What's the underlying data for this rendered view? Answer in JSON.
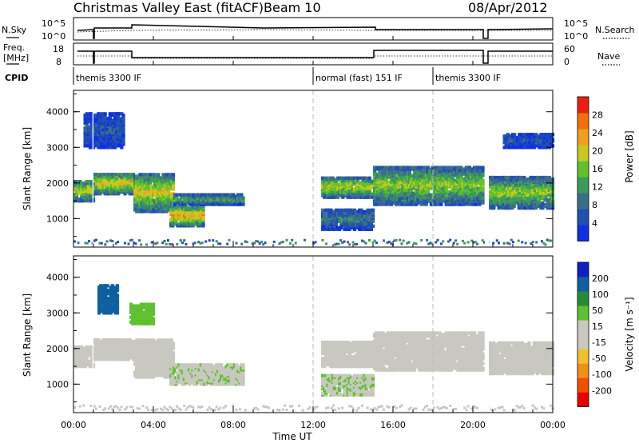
{
  "header": {
    "title": "Christmas Valley East (fitACF)",
    "beam": "Beam 10",
    "date": "08/Apr/2012"
  },
  "top_panels": {
    "nsky_label": "N.Sky",
    "nsky_ticks": [
      "10^5",
      "10^0"
    ],
    "nsearch_label": "N.Search",
    "nsearch_ticks": [
      "10^5",
      "10^0"
    ],
    "freq_label_line1": "Freq.",
    "freq_label_line2": "[MHz]",
    "freq_ticks": [
      "18",
      "8"
    ],
    "nave_label": "Nave",
    "nave_ticks": [
      "60",
      "0"
    ],
    "cpid_label": "CPID",
    "cpid_segments": [
      {
        "label": "themis 3300 IF",
        "start_hour": 0.0
      },
      {
        "label": "normal (fast) 151 IF",
        "start_hour": 12.0
      },
      {
        "label": "themis 3300 IF",
        "start_hour": 18.0
      }
    ],
    "gap_hours": [
      [
        0.95,
        1.0
      ],
      [
        20.6,
        20.8
      ]
    ]
  },
  "chart_data": [
    {
      "type": "heatmap",
      "name": "power",
      "ylabel": "Slant Range [km]",
      "yticks": [
        1000,
        2000,
        3000,
        4000
      ],
      "ylim": [
        200,
        4600
      ],
      "xlim": [
        0,
        24
      ],
      "colorbar_label": "Power [dB]",
      "colorbar_ticks": [
        4,
        8,
        12,
        16,
        20,
        24,
        28
      ],
      "colorbar_range": [
        0,
        32
      ],
      "colorbar_colors": [
        "#1030e0",
        "#2050b0",
        "#3c6e8c",
        "#3c9a5a",
        "#62c030",
        "#c8c820",
        "#f0a020",
        "#f07010",
        "#e82010"
      ],
      "echo_bands": [
        {
          "t0": 0.0,
          "t1": 1.0,
          "r0": 1500,
          "r1": 2100,
          "level": 20
        },
        {
          "t0": 1.0,
          "t1": 3.0,
          "r0": 1700,
          "r1": 2300,
          "level": 22
        },
        {
          "t0": 3.0,
          "t1": 5.0,
          "r0": 1200,
          "r1": 2300,
          "level": 21
        },
        {
          "t0": 4.8,
          "t1": 6.5,
          "r0": 800,
          "r1": 1400,
          "level": 24
        },
        {
          "t0": 5.0,
          "t1": 8.5,
          "r0": 1400,
          "r1": 1700,
          "level": 14
        },
        {
          "t0": 12.4,
          "t1": 15.0,
          "r0": 1600,
          "r1": 2200,
          "level": 20
        },
        {
          "t0": 12.4,
          "t1": 15.0,
          "r0": 700,
          "r1": 1300,
          "level": 10
        },
        {
          "t0": 15.0,
          "t1": 20.5,
          "r0": 1400,
          "r1": 2500,
          "level": 18
        },
        {
          "t0": 20.8,
          "t1": 24.0,
          "r0": 1300,
          "r1": 2200,
          "level": 18
        },
        {
          "t0": 0.5,
          "t1": 2.5,
          "r0": 3000,
          "r1": 4000,
          "level": 6
        },
        {
          "t0": 21.5,
          "t1": 24.0,
          "r0": 3000,
          "r1": 3400,
          "level": 6
        }
      ]
    },
    {
      "type": "heatmap",
      "name": "velocity",
      "ylabel": "Slant Range [km]",
      "yticks": [
        1000,
        2000,
        3000,
        4000
      ],
      "ylim": [
        200,
        4600
      ],
      "xlabel": "Time UT",
      "xticks": [
        "00:00",
        "04:00",
        "08:00",
        "12:00",
        "16:00",
        "20:00",
        "00:00"
      ],
      "xlim": [
        0,
        24
      ],
      "colorbar_label": "Velocity [m s⁻¹]",
      "colorbar_ticks": [
        200,
        100,
        50,
        15,
        -15,
        -50,
        -100,
        -200
      ],
      "colorbar_range": [
        -250,
        250
      ],
      "colorbar_colors": [
        "#e80000",
        "#f05000",
        "#f09018",
        "#f0c030",
        "#c8c8c0",
        "#c8c8c0",
        "#60c030",
        "#2a8a3a",
        "#1060a0",
        "#1020c0"
      ],
      "echo_bands": [
        {
          "t0": 0.0,
          "t1": 1.0,
          "r0": 1500,
          "r1": 2100,
          "level": 0
        },
        {
          "t0": 1.0,
          "t1": 3.0,
          "r0": 1700,
          "r1": 2300,
          "level": 0
        },
        {
          "t0": 3.0,
          "t1": 5.0,
          "r0": 1200,
          "r1": 2300,
          "level": 0
        },
        {
          "t0": 4.8,
          "t1": 8.5,
          "r0": 1000,
          "r1": 1600,
          "level": 40
        },
        {
          "t0": 12.4,
          "t1": 15.0,
          "r0": 1500,
          "r1": 2200,
          "level": 0
        },
        {
          "t0": 12.4,
          "t1": 15.0,
          "r0": 700,
          "r1": 1300,
          "level": 45
        },
        {
          "t0": 15.0,
          "t1": 20.5,
          "r0": 1400,
          "r1": 2500,
          "level": 0
        },
        {
          "t0": 20.8,
          "t1": 24.0,
          "r0": 1300,
          "r1": 2200,
          "level": 0
        },
        {
          "t0": 1.2,
          "t1": 2.2,
          "r0": 3000,
          "r1": 3800,
          "level": 180
        },
        {
          "t0": 2.8,
          "t1": 4.0,
          "r0": 2700,
          "r1": 3300,
          "level": 70
        }
      ]
    }
  ]
}
